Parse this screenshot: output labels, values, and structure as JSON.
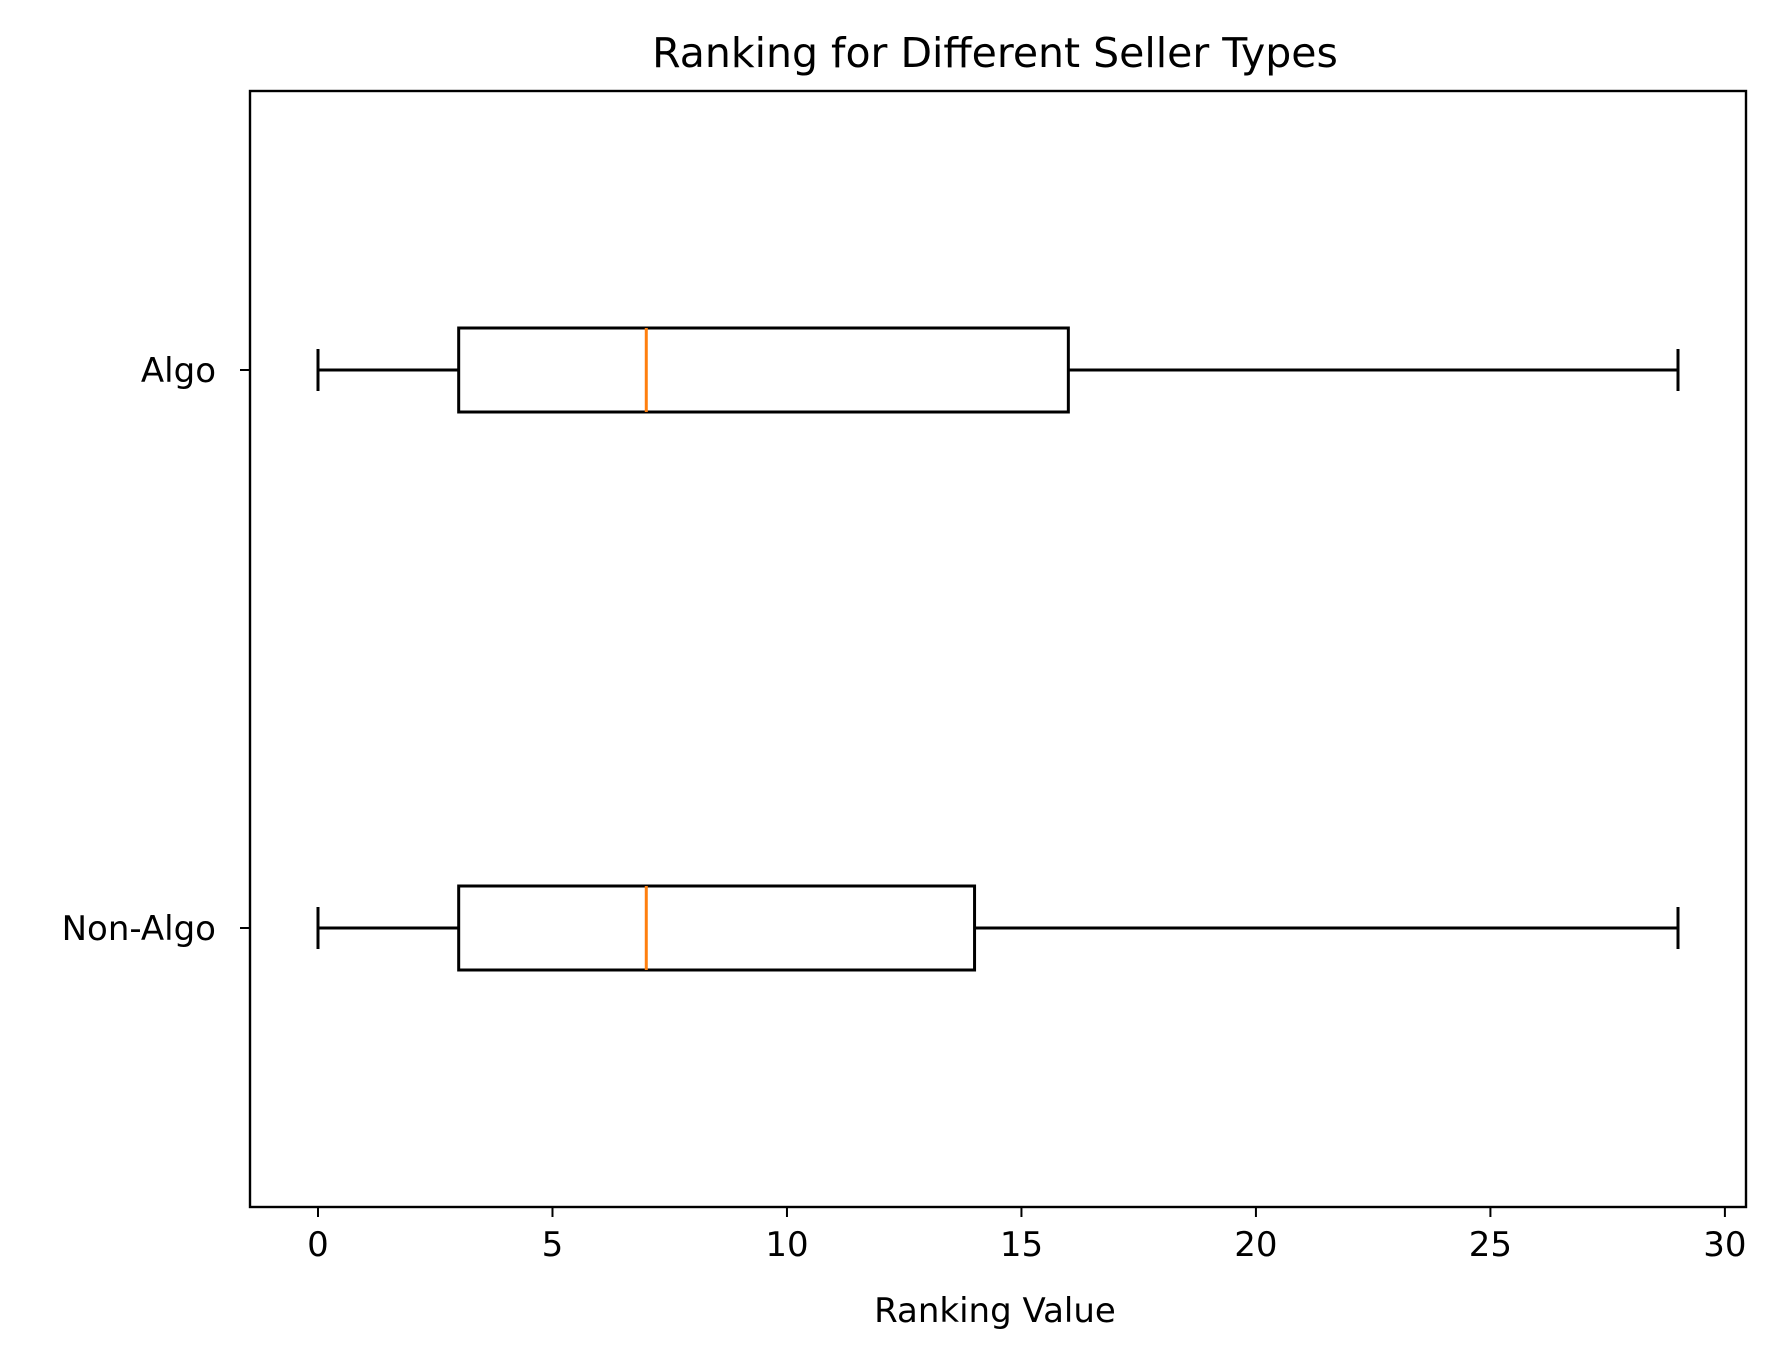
{
  "chart_data": {
    "type": "boxplot",
    "orientation": "horizontal",
    "title": "Ranking for Different Seller Types",
    "xlabel": "Ranking Value",
    "ylabel": "",
    "xlim": [
      -1.45,
      30.45
    ],
    "xticks": [
      0,
      5,
      10,
      15,
      20,
      25,
      30
    ],
    "xtick_labels": [
      "0",
      "5",
      "10",
      "15",
      "20",
      "25",
      "30"
    ],
    "grid": false,
    "legend": "none",
    "categories": [
      "Non-Algo",
      "Algo"
    ],
    "series": [
      {
        "name": "Non-Algo",
        "whisker_low": 0,
        "q1": 3,
        "median": 7,
        "q3": 14,
        "whisker_high": 29
      },
      {
        "name": "Algo",
        "whisker_low": 0,
        "q1": 3,
        "median": 7,
        "q3": 16,
        "whisker_high": 29
      }
    ],
    "colors": {
      "box": "#000000",
      "median": "#ff7f0e",
      "axes": "#000000"
    }
  }
}
